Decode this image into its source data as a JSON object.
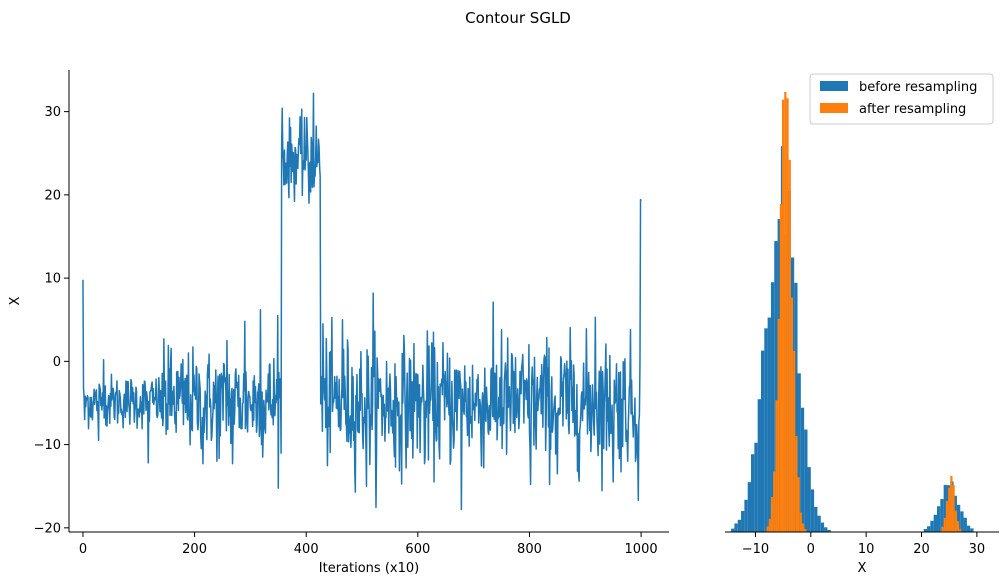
{
  "suptitle": "Contour SGLD",
  "colors": {
    "trace": "#1f77b4",
    "before": "#1f77b4",
    "after": "#ff7f0e"
  },
  "chart_data": [
    {
      "type": "line",
      "xlabel": "Iterations (x10)",
      "ylabel": "X",
      "xlim": [
        -25,
        1050
      ],
      "ylim": [
        -20.5,
        35
      ],
      "xticks": [
        0,
        200,
        400,
        600,
        800,
        1000
      ],
      "yticks": [
        -20,
        -10,
        0,
        10,
        20,
        30
      ],
      "segments": [
        {
          "start": 0,
          "end": 0,
          "mean": 9.8,
          "sd": 0
        },
        {
          "start": 1,
          "end": 140,
          "mean": -4.8,
          "sd": 1.6
        },
        {
          "start": 141,
          "end": 355,
          "mean": -4.8,
          "sd": 3.0
        },
        {
          "start": 356,
          "end": 425,
          "mean": 24.3,
          "sd": 2.2
        },
        {
          "start": 426,
          "end": 998,
          "mean": -5.0,
          "sd": 3.7
        },
        {
          "start": 999,
          "end": 1000,
          "mean": 19.2,
          "sd": 0.5
        }
      ],
      "spikes": [
        {
          "x": 2,
          "y": -4.2
        },
        {
          "x": 3,
          "y": -7.0
        },
        {
          "x": 28,
          "y": -9.5
        },
        {
          "x": 37,
          "y": 0.2
        },
        {
          "x": 117,
          "y": -12.2
        },
        {
          "x": 153,
          "y": 1.9
        },
        {
          "x": 215,
          "y": -12.3
        },
        {
          "x": 240,
          "y": -12.0
        },
        {
          "x": 258,
          "y": 2.5
        },
        {
          "x": 268,
          "y": -12.3
        },
        {
          "x": 290,
          "y": 4.8
        },
        {
          "x": 318,
          "y": 6.2
        },
        {
          "x": 322,
          "y": -11.5
        },
        {
          "x": 349,
          "y": 5.5
        },
        {
          "x": 357,
          "y": 30.4
        },
        {
          "x": 360,
          "y": 21.2
        },
        {
          "x": 397,
          "y": 29.3
        },
        {
          "x": 413,
          "y": 32.2
        },
        {
          "x": 405,
          "y": 19.0
        },
        {
          "x": 430,
          "y": 4.5
        },
        {
          "x": 465,
          "y": 5.0
        },
        {
          "x": 508,
          "y": -15.0
        },
        {
          "x": 520,
          "y": 8.2
        },
        {
          "x": 560,
          "y": -12.7
        },
        {
          "x": 612,
          "y": -12.3
        },
        {
          "x": 628,
          "y": 3.5
        },
        {
          "x": 678,
          "y": -17.8
        },
        {
          "x": 750,
          "y": 3.8
        },
        {
          "x": 802,
          "y": -14.8
        },
        {
          "x": 850,
          "y": -13.5
        },
        {
          "x": 918,
          "y": 5.3
        },
        {
          "x": 950,
          "y": -14.5
        },
        {
          "x": 990,
          "y": -12.0
        },
        {
          "x": 995,
          "y": -16.7
        }
      ]
    },
    {
      "type": "histogram",
      "xlabel": "X",
      "xlim": [
        -15.5,
        34
      ],
      "xticks": [
        -10,
        0,
        10,
        20,
        30
      ],
      "ylim": [
        0,
        1
      ],
      "legend": {
        "position": "top-right",
        "entries": [
          {
            "label": "before resampling",
            "series": "before"
          },
          {
            "label": "after resampling",
            "series": "after"
          }
        ]
      },
      "series": [
        {
          "name": "before resampling",
          "key": "before",
          "components": [
            {
              "center": -5.0,
              "sd": 2.6,
              "peak": 0.78
            },
            {
              "center": -9.5,
              "sd": 2.0,
              "peak": 0.1
            },
            {
              "center": 25.0,
              "sd": 1.8,
              "peak": 0.11
            }
          ],
          "bin_start": -15,
          "bin_end": 33,
          "bin_width": 0.6
        },
        {
          "name": "after resampling",
          "key": "after",
          "components": [
            {
              "center": -4.5,
              "sd": 1.1,
              "peak": 1.0
            },
            {
              "center": 25.3,
              "sd": 0.7,
              "peak": 0.125
            }
          ],
          "bin_start": -10,
          "bin_end": 28,
          "bin_width": 0.4
        }
      ]
    }
  ]
}
